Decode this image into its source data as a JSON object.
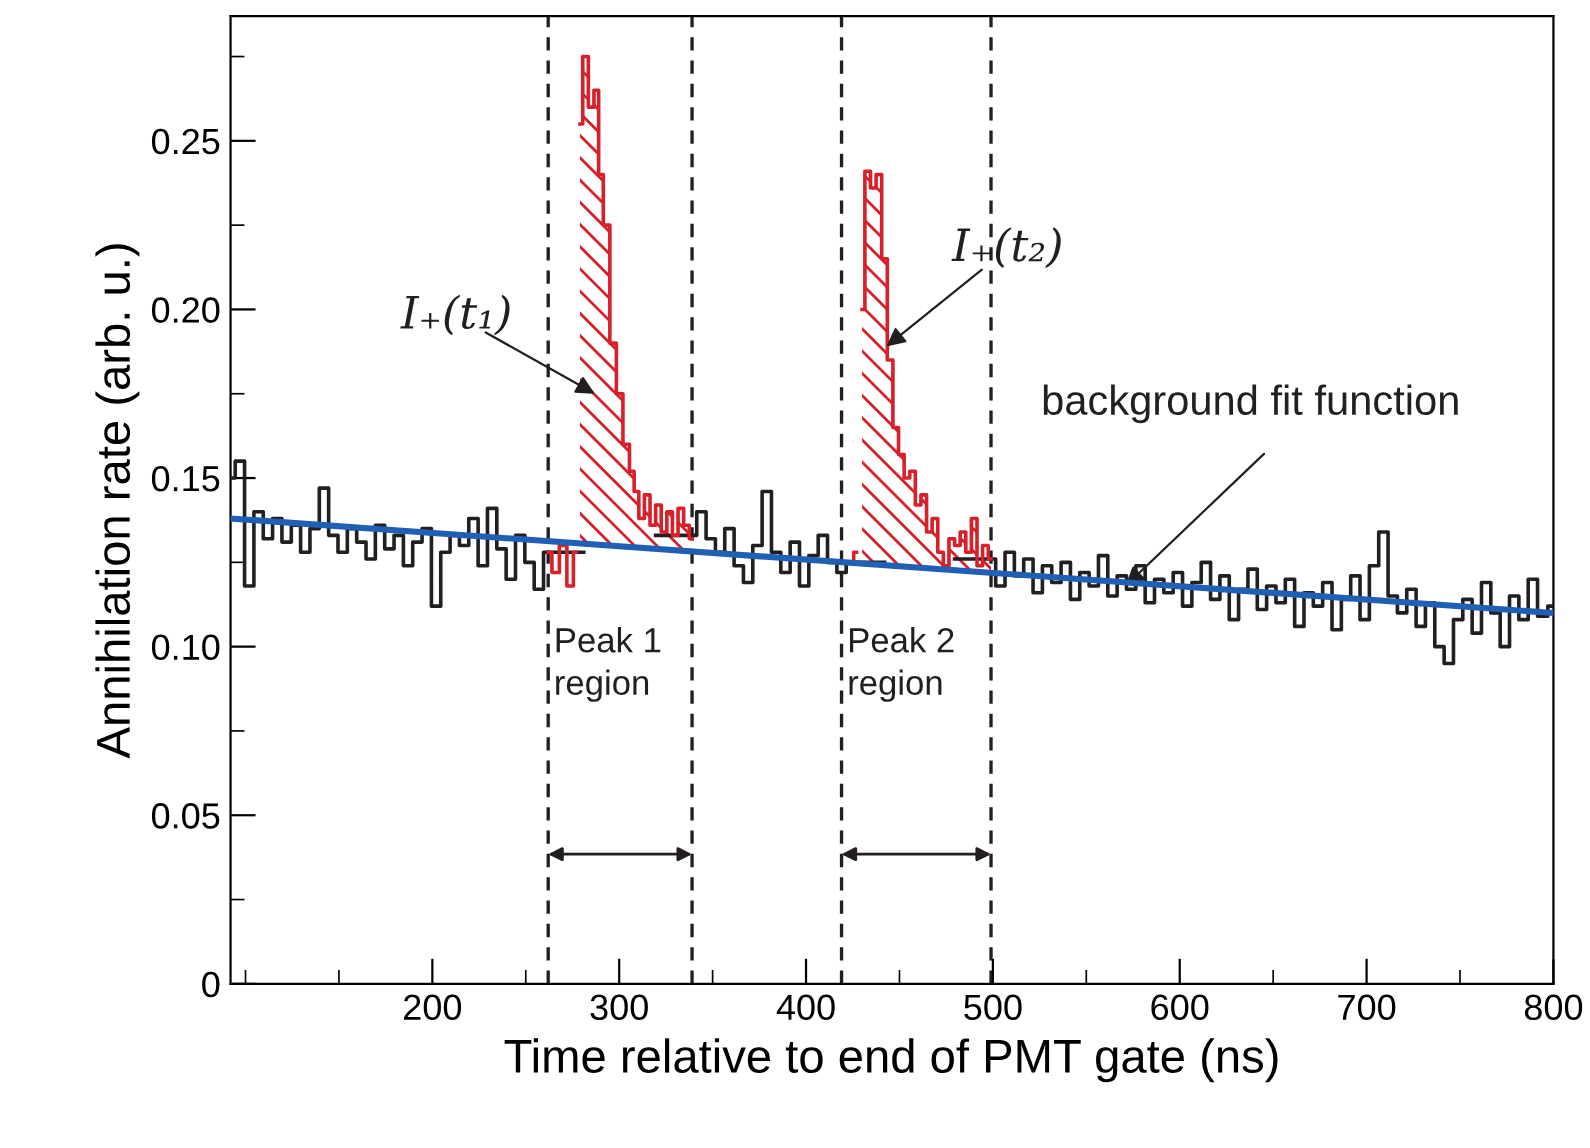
{
  "chart_data": {
    "type": "step",
    "xlabel": "Time relative to end of PMT gate (ns)",
    "ylabel": "Annihilation rate (arb. u.)",
    "xlim": [
      92,
      800
    ],
    "ylim": [
      0,
      0.287
    ],
    "xticks": [
      200,
      300,
      400,
      500,
      600,
      700,
      800
    ],
    "yticks": [
      0,
      0.05,
      {
        "value": 0.1,
        "label": "0.10"
      },
      0.15,
      {
        "value": 0.2,
        "label": "0.20"
      },
      0.25
    ],
    "series": [
      {
        "color": "#231f20",
        "x": [
          92,
          97,
          102,
          107,
          112,
          117,
          122,
          127,
          132,
          137,
          142,
          147,
          152,
          157,
          162,
          167,
          172,
          177,
          182,
          187,
          192,
          197,
          202,
          207,
          212,
          217,
          222,
          227,
          232,
          237,
          242,
          247,
          252,
          257,
          262,
          300,
          339,
          344,
          349,
          354,
          359,
          364,
          369,
          374,
          379,
          384,
          389,
          394,
          399,
          404,
          409,
          414,
          419,
          424,
          460,
          499,
          504,
          509,
          514,
          519,
          524,
          529,
          534,
          539,
          544,
          549,
          554,
          559,
          564,
          569,
          574,
          579,
          584,
          589,
          594,
          599,
          604,
          609,
          614,
          619,
          624,
          629,
          634,
          639,
          644,
          649,
          654,
          659,
          664,
          669,
          674,
          679,
          684,
          689,
          694,
          699,
          704,
          709,
          714,
          719,
          724,
          729,
          734,
          739,
          744,
          749,
          754,
          759,
          764,
          769,
          774,
          779,
          784,
          789,
          794,
          800
        ],
        "values": [
          0.15,
          0.155,
          0.118,
          0.14,
          0.132,
          0.138,
          0.131,
          0.136,
          0.128,
          0.135,
          0.147,
          0.133,
          0.128,
          0.135,
          0.131,
          0.126,
          0.136,
          0.129,
          0.133,
          0.124,
          0.131,
          0.135,
          0.112,
          0.128,
          0.133,
          0.13,
          0.138,
          0.124,
          0.141,
          0.129,
          0.12,
          0.133,
          0.125,
          0.117,
          0.128,
          null,
          0.133,
          0.14,
          0.132,
          0.128,
          0.135,
          0.124,
          0.119,
          0.13,
          0.146,
          0.128,
          0.122,
          0.131,
          0.118,
          0.127,
          0.133,
          0.125,
          0.122,
          0.125,
          null,
          0.126,
          0.118,
          0.128,
          0.121,
          0.126,
          0.116,
          0.124,
          0.119,
          0.125,
          0.114,
          0.122,
          0.118,
          0.127,
          0.115,
          0.121,
          0.117,
          0.124,
          0.113,
          0.12,
          0.116,
          0.122,
          0.112,
          0.119,
          0.125,
          0.114,
          0.121,
          0.108,
          0.117,
          0.123,
          0.111,
          0.118,
          0.113,
          0.12,
          0.106,
          0.116,
          0.112,
          0.119,
          0.105,
          0.114,
          0.121,
          0.108,
          0.124,
          0.134,
          0.115,
          0.11,
          0.117,
          0.106,
          0.113,
          0.1,
          0.095,
          0.108,
          0.114,
          0.104,
          0.119,
          0.11,
          0.1,
          0.115,
          0.108,
          0.12,
          0.109,
          0.112
        ]
      },
      {
        "color": "#d7202a",
        "x": [
          262,
          266,
          270,
          274,
          277
        ],
        "values": [
          0.128,
          0.122,
          0.13,
          0.118,
          0.128
        ]
      },
      {
        "color": "#d7202a",
        "x": [
          424,
          427
        ],
        "values": [
          0.125,
          0.128
        ]
      },
      {
        "type": "area",
        "color": "#d7202a",
        "x": [
          279,
          282,
          285,
          288,
          290,
          293,
          297,
          300,
          304,
          307,
          309,
          312,
          315,
          318,
          321,
          324,
          327,
          330,
          333,
          336,
          339
        ],
        "values": [
          0.255,
          0.275,
          0.26,
          0.265,
          0.24,
          0.225,
          0.19,
          0.175,
          0.16,
          0.152,
          0.146,
          0.138,
          0.145,
          0.136,
          0.142,
          0.134,
          0.14,
          0.133,
          0.141,
          0.136,
          0.132
        ]
      },
      {
        "type": "area",
        "color": "#d7202a",
        "x": [
          430,
          433,
          436,
          439,
          442,
          445,
          448,
          451,
          454,
          457,
          460,
          463,
          466,
          469,
          472,
          475,
          478,
          481,
          484,
          487,
          490,
          493,
          496,
          499
        ],
        "values": [
          0.2,
          0.241,
          0.236,
          0.24,
          0.215,
          0.185,
          0.165,
          0.157,
          0.15,
          0.152,
          0.142,
          0.145,
          0.134,
          0.138,
          0.128,
          0.124,
          0.132,
          0.13,
          0.134,
          0.128,
          0.138,
          0.124,
          0.13,
          0.126
        ]
      },
      {
        "type": "line",
        "color": "#1f5fb4",
        "x": [
          92,
          800
        ],
        "values": [
          0.138,
          0.11
        ]
      }
    ],
    "ref_lines": [
      {
        "axis": "x",
        "value": 262,
        "line_style": "dashed"
      },
      {
        "axis": "x",
        "value": 339,
        "line_style": "dashed"
      },
      {
        "axis": "x",
        "value": 419,
        "line_style": "dashed"
      },
      {
        "axis": "x",
        "value": 499,
        "line_style": "dashed"
      }
    ],
    "annotations": [
      "I₊(t₁)",
      {
        "text": "I₊(t₂)",
        "x": 443,
        "y": 0.189
      },
      {
        "text": "background fit function",
        "x": 571,
        "y": 0.118
      },
      "Peak 1\nregion",
      "Peak 2\nregion"
    ],
    "grid": false,
    "legend": false
  }
}
